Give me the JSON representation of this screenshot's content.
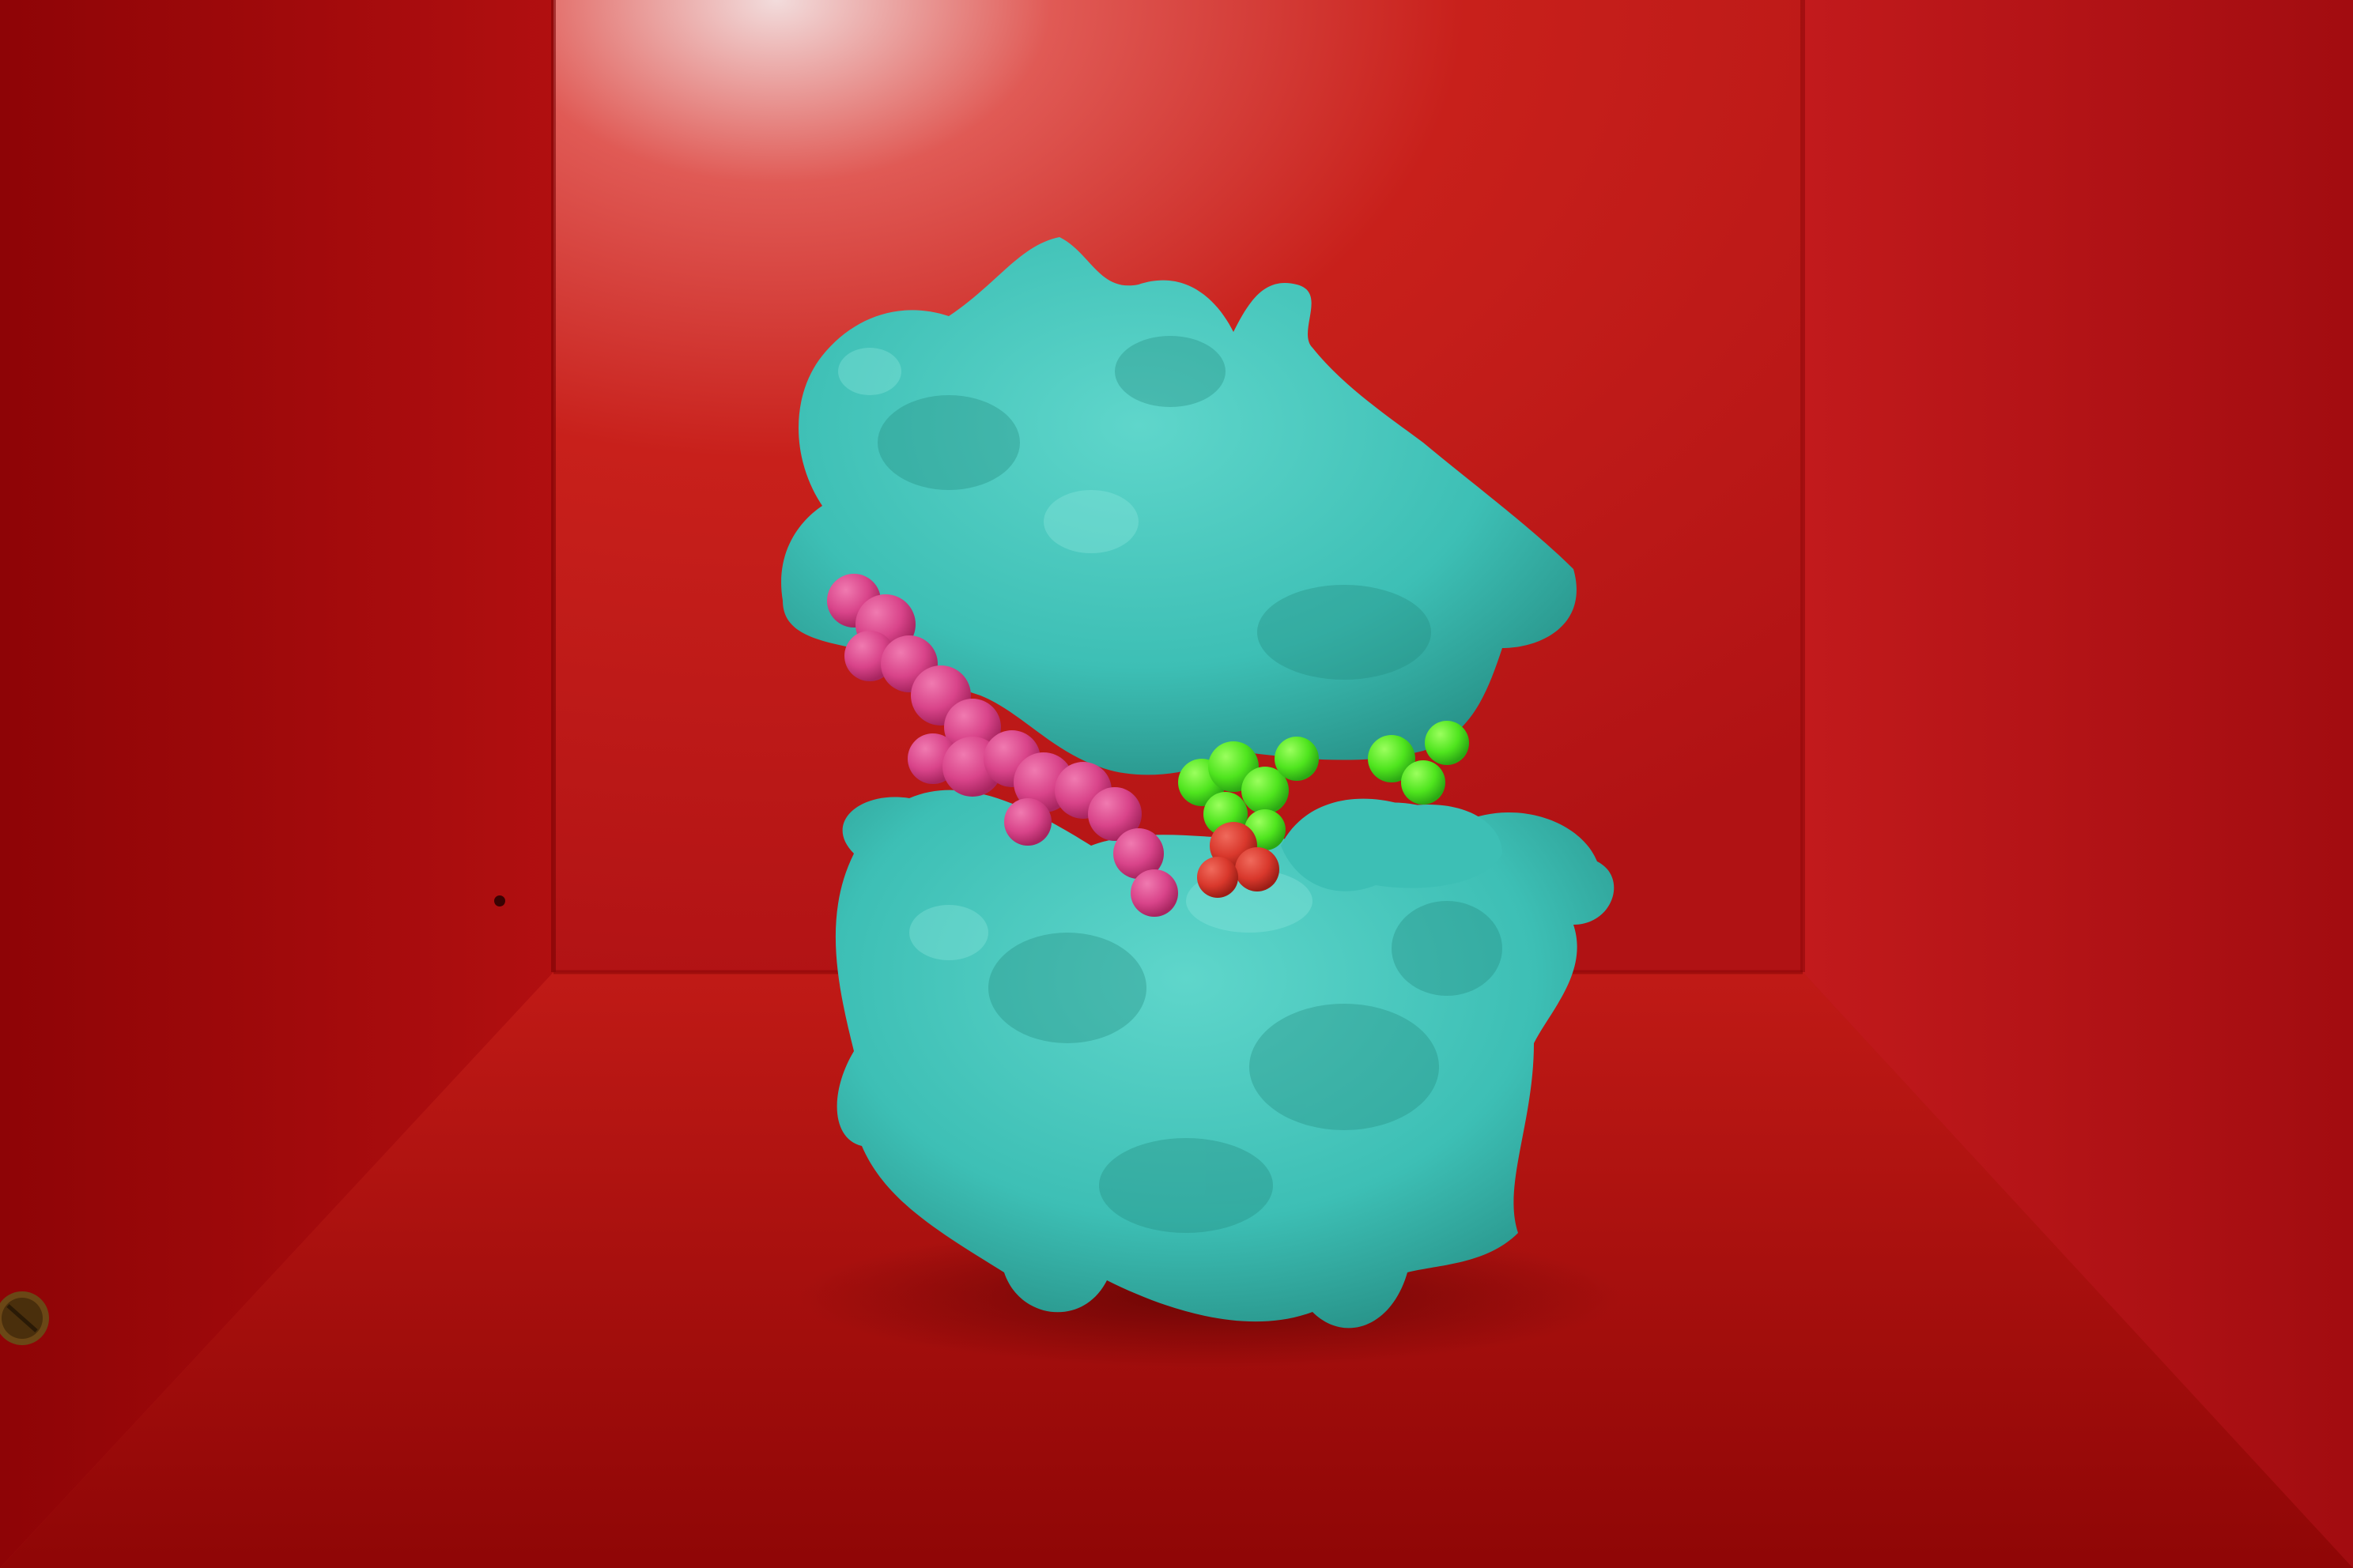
{
  "scene": {
    "subject": "protein-surface-model",
    "setting": "red-box-shelf",
    "colors": {
      "back_wall": "#c8201b",
      "back_wall_highlight": "#f0d8d8",
      "left_wall": "#a80a0c",
      "right_wall": "#b3141a",
      "floor": "#a50b0a",
      "protein_surface": "#3dbfb5",
      "protein_shadow": "#23897f",
      "protein_highlight": "#7ee3d8",
      "ligand_pink": "#d9448a",
      "ligand_pink_dark": "#a82560",
      "ligand_green": "#4fe51e",
      "ligand_green_dark": "#2ba814",
      "ligand_red": "#d9382c",
      "screw": "#5a3a12"
    },
    "icons": [
      "screw-icon"
    ]
  }
}
